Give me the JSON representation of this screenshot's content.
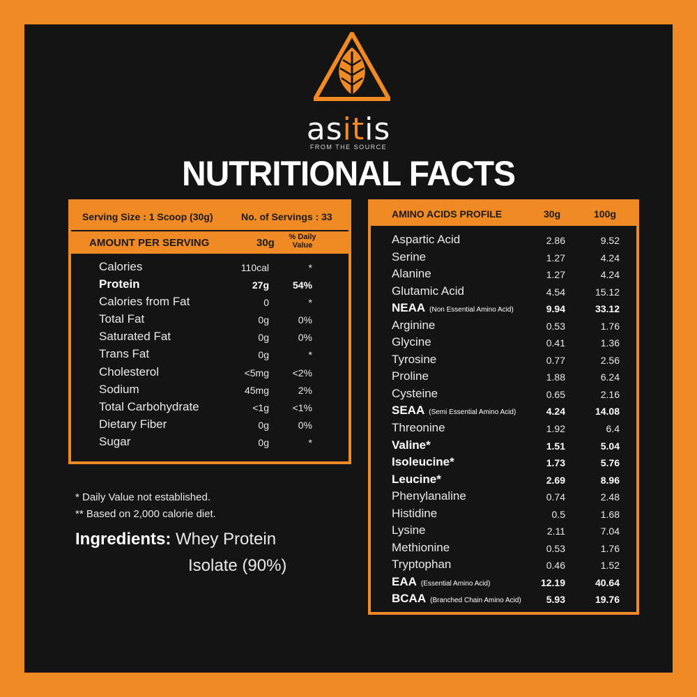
{
  "brand": {
    "name_pre": "as",
    "name_accent": "it",
    "name_post": "is",
    "tagline": "FROM THE SOURCE"
  },
  "title": "NUTRITIONAL FACTS",
  "nutrition": {
    "serving_size": "Serving Size : 1 Scoop (30g)",
    "servings": "No. of Servings : 33",
    "amount_header": "AMOUNT PER SERVING",
    "col_30g": "30g",
    "col_dv": "% Daily Value",
    "rows": [
      {
        "name": "Calories",
        "value": "110cal",
        "dv": "*"
      },
      {
        "name": "Protein",
        "value": "27g",
        "dv": "54%"
      },
      {
        "name": "Calories from Fat",
        "value": "0",
        "dv": "*"
      },
      {
        "name": "Total Fat",
        "value": "0g",
        "dv": "0%"
      },
      {
        "name": "Saturated Fat",
        "value": "0g",
        "dv": "0%"
      },
      {
        "name": "Trans Fat",
        "value": "0g",
        "dv": "*"
      },
      {
        "name": "Cholesterol",
        "value": "<5mg",
        "dv": "<2%"
      },
      {
        "name": "Sodium",
        "value": "45mg",
        "dv": "2%"
      },
      {
        "name": "Total Carbohydrate",
        "value": "<1g",
        "dv": "<1%"
      },
      {
        "name": "Dietary Fiber",
        "value": "0g",
        "dv": "0%"
      },
      {
        "name": "Sugar",
        "value": "0g",
        "dv": "*"
      }
    ]
  },
  "notes": {
    "note1": "* Daily Value not established.",
    "note2": "** Based on 2,000 calorie diet."
  },
  "ingredients": {
    "label": "Ingredients:",
    "line1": "Whey Protein",
    "line2": "Isolate (90%)"
  },
  "amino": {
    "header": "AMINO ACIDS PROFILE",
    "col_30g": "30g",
    "col_100g": "100g",
    "rows": [
      {
        "name": "Aspartic Acid",
        "sub": "",
        "v30": "2.86",
        "v100": "9.52"
      },
      {
        "name": "Serine",
        "sub": "",
        "v30": "1.27",
        "v100": "4.24"
      },
      {
        "name": "Alanine",
        "sub": "",
        "v30": "1.27",
        "v100": "4.24"
      },
      {
        "name": "Glutamic Acid",
        "sub": "",
        "v30": "4.54",
        "v100": "15.12"
      },
      {
        "name": "NEAA",
        "sub": "(Non Essential Amino Acid)",
        "v30": "9.94",
        "v100": "33.12"
      },
      {
        "name": "Arginine",
        "sub": "",
        "v30": "0.53",
        "v100": "1.76"
      },
      {
        "name": "Glycine",
        "sub": "",
        "v30": "0.41",
        "v100": "1.36"
      },
      {
        "name": "Tyrosine",
        "sub": "",
        "v30": "0.77",
        "v100": "2.56"
      },
      {
        "name": "Proline",
        "sub": "",
        "v30": "1.88",
        "v100": "6.24"
      },
      {
        "name": "Cysteine",
        "sub": "",
        "v30": "0.65",
        "v100": "2.16"
      },
      {
        "name": "SEAA",
        "sub": "(Semi Essential Amino Acid)",
        "v30": "4.24",
        "v100": "14.08"
      },
      {
        "name": "Threonine",
        "sub": "",
        "v30": "1.92",
        "v100": "6.4"
      },
      {
        "name": "Valine*",
        "sub": "",
        "v30": "1.51",
        "v100": "5.04"
      },
      {
        "name": "Isoleucine*",
        "sub": "",
        "v30": "1.73",
        "v100": "5.76"
      },
      {
        "name": "Leucine*",
        "sub": "",
        "v30": "2.69",
        "v100": "8.96"
      },
      {
        "name": "Phenylanaline",
        "sub": "",
        "v30": "0.74",
        "v100": "2.48"
      },
      {
        "name": "Histidine",
        "sub": "",
        "v30": "0.5",
        "v100": "1.68"
      },
      {
        "name": "Lysine",
        "sub": "",
        "v30": "2.11",
        "v100": "7.04"
      },
      {
        "name": "Methionine",
        "sub": "",
        "v30": "0.53",
        "v100": "1.76"
      },
      {
        "name": "Tryptophan",
        "sub": "",
        "v30": "0.46",
        "v100": "1.52"
      },
      {
        "name": "EAA",
        "sub": "(Essential Amino Acid)",
        "v30": "12.19",
        "v100": "40.64"
      },
      {
        "name": "BCAA",
        "sub": "(Branched Chain Amino Acid)",
        "v30": "5.93",
        "v100": "19.76"
      }
    ]
  }
}
